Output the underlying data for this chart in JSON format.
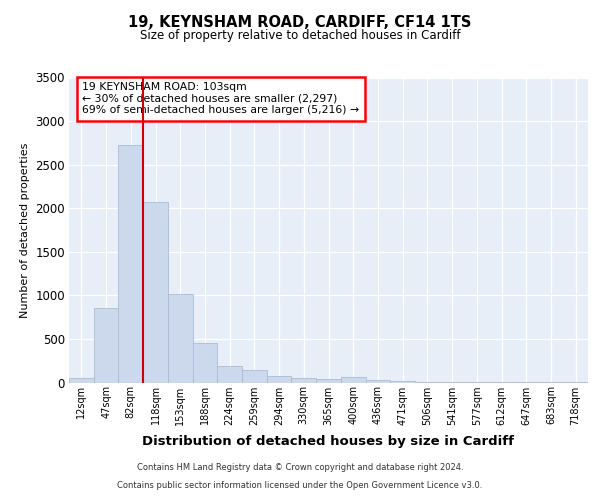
{
  "title1": "19, KEYNSHAM ROAD, CARDIFF, CF14 1TS",
  "title2": "Size of property relative to detached houses in Cardiff",
  "xlabel": "Distribution of detached houses by size in Cardiff",
  "ylabel": "Number of detached properties",
  "footnote1": "Contains HM Land Registry data © Crown copyright and database right 2024.",
  "footnote2": "Contains public sector information licensed under the Open Government Licence v3.0.",
  "annotation_line1": "19 KEYNSHAM ROAD: 103sqm",
  "annotation_line2": "← 30% of detached houses are smaller (2,297)",
  "annotation_line3": "69% of semi-detached houses are larger (5,216) →",
  "bar_color": "#ccd9ec",
  "bar_edge_color": "#aabdd6",
  "marker_color": "#cc0000",
  "ylim": [
    0,
    3500
  ],
  "yticks": [
    0,
    500,
    1000,
    1500,
    2000,
    2500,
    3000,
    3500
  ],
  "categories": [
    "12sqm",
    "47sqm",
    "82sqm",
    "118sqm",
    "153sqm",
    "188sqm",
    "224sqm",
    "259sqm",
    "294sqm",
    "330sqm",
    "365sqm",
    "400sqm",
    "436sqm",
    "471sqm",
    "506sqm",
    "541sqm",
    "577sqm",
    "612sqm",
    "647sqm",
    "683sqm",
    "718sqm"
  ],
  "values": [
    55,
    850,
    2720,
    2070,
    1010,
    450,
    195,
    145,
    75,
    50,
    40,
    60,
    25,
    20,
    5,
    5,
    4,
    3,
    2,
    2,
    1
  ],
  "marker_xval": 2.5,
  "background_color": "#e8eef8",
  "grid_color": "#ffffff",
  "fig_bg": "#ffffff"
}
